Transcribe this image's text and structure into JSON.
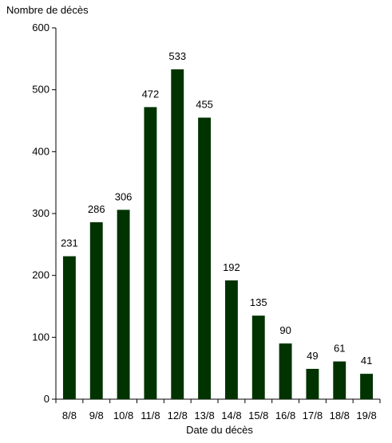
{
  "chart_data": {
    "type": "bar",
    "title": "",
    "ylabel": "Nombre de décès",
    "xlabel": "Date du décès",
    "categories": [
      "8/8",
      "9/8",
      "10/8",
      "11/8",
      "12/8",
      "13/8",
      "14/8",
      "15/8",
      "16/8",
      "17/8",
      "18/8",
      "19/8"
    ],
    "values": [
      231,
      286,
      306,
      472,
      533,
      455,
      192,
      135,
      90,
      49,
      61,
      41
    ],
    "ylim": [
      0,
      600
    ],
    "yticks": [
      0,
      100,
      200,
      300,
      400,
      500,
      600
    ],
    "grid": false,
    "legend": "none",
    "data_labels": true,
    "bar_color": "#003300"
  }
}
